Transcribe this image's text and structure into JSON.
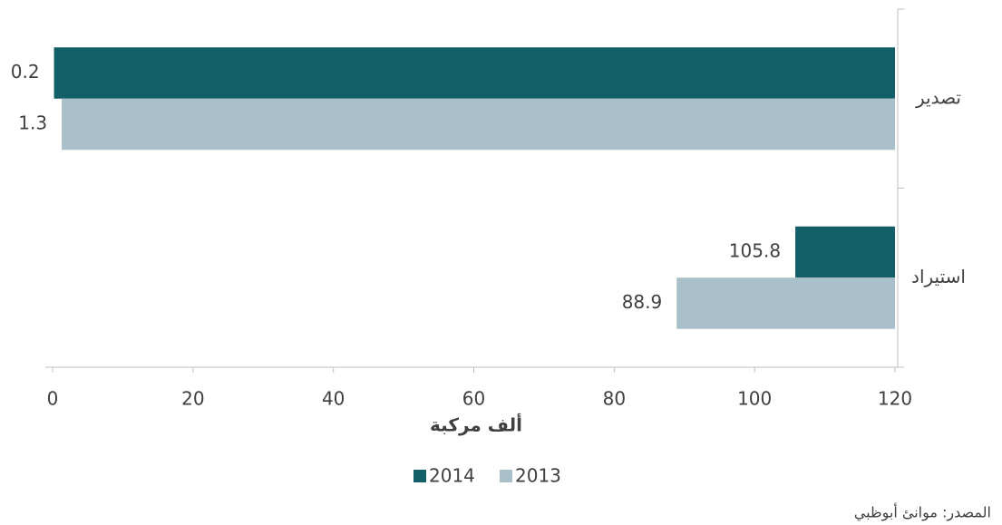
{
  "chart_data": {
    "type": "bar",
    "orientation": "horizontal",
    "categories": [
      "تصدير",
      "استيراد"
    ],
    "series": [
      {
        "name": "2014",
        "color": "#135f68",
        "values": [
          0.2,
          105.8
        ]
      },
      {
        "name": "2013",
        "color": "#a9bfc9",
        "values": [
          1.3,
          88.9
        ]
      }
    ],
    "xlim": [
      0,
      120
    ],
    "xticks": [
      0,
      20,
      40,
      60,
      80,
      100,
      120
    ],
    "xlabel": "ألف مركبة",
    "source": "المصدر: موانئ أبوظبي",
    "grid": false
  }
}
